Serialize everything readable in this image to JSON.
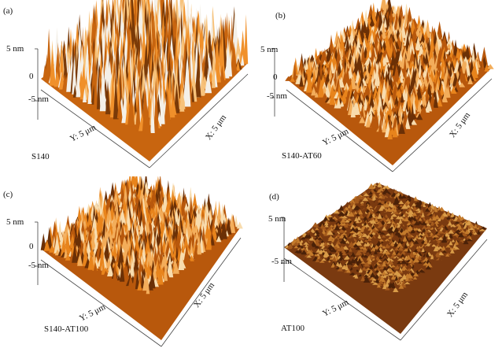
{
  "panels": [
    {
      "letter": "(a)",
      "name": "S140",
      "z_top": "5 nm",
      "z_mid": "0",
      "z_bot": "-5 nm",
      "y_axis": "Y: 5 μm",
      "x_axis": "X: 5 μm",
      "palette": "bright",
      "roughness": 1.0
    },
    {
      "letter": "(b)",
      "name": "S140-AT60",
      "z_top": "5 nm",
      "z_mid": "0",
      "z_bot": "-5 nm",
      "y_axis": "Y: 5 μm",
      "x_axis": "X: 5 μm",
      "palette": "orange",
      "roughness": 0.55
    },
    {
      "letter": "(c)",
      "name": "S140-AT100",
      "z_top": "5 nm",
      "z_mid": "0",
      "z_bot": "-5 nm",
      "y_axis": "Y: 5 μm",
      "x_axis": "X: 5 μm",
      "palette": "orange",
      "roughness": 0.6
    },
    {
      "letter": "(d)",
      "name": "AT100",
      "z_top": "5 nm",
      "z_mid": "",
      "z_bot": "-5 nm",
      "y_axis": "Y: 5 μm",
      "x_axis": "X: 5 μm",
      "palette": "brown",
      "roughness": 0.25
    }
  ],
  "colors": {
    "bright": [
      "#7a3a08",
      "#c8650f",
      "#f0902a",
      "#f7c27a",
      "#f4f0e8"
    ],
    "orange": [
      "#6b3006",
      "#b8580c",
      "#e8841c",
      "#f3ad5a",
      "#f8dcae"
    ],
    "brown": [
      "#4a2108",
      "#7a3a10",
      "#a45a1c",
      "#c47b2c",
      "#d99c48"
    ],
    "axis_line": "#444444"
  }
}
